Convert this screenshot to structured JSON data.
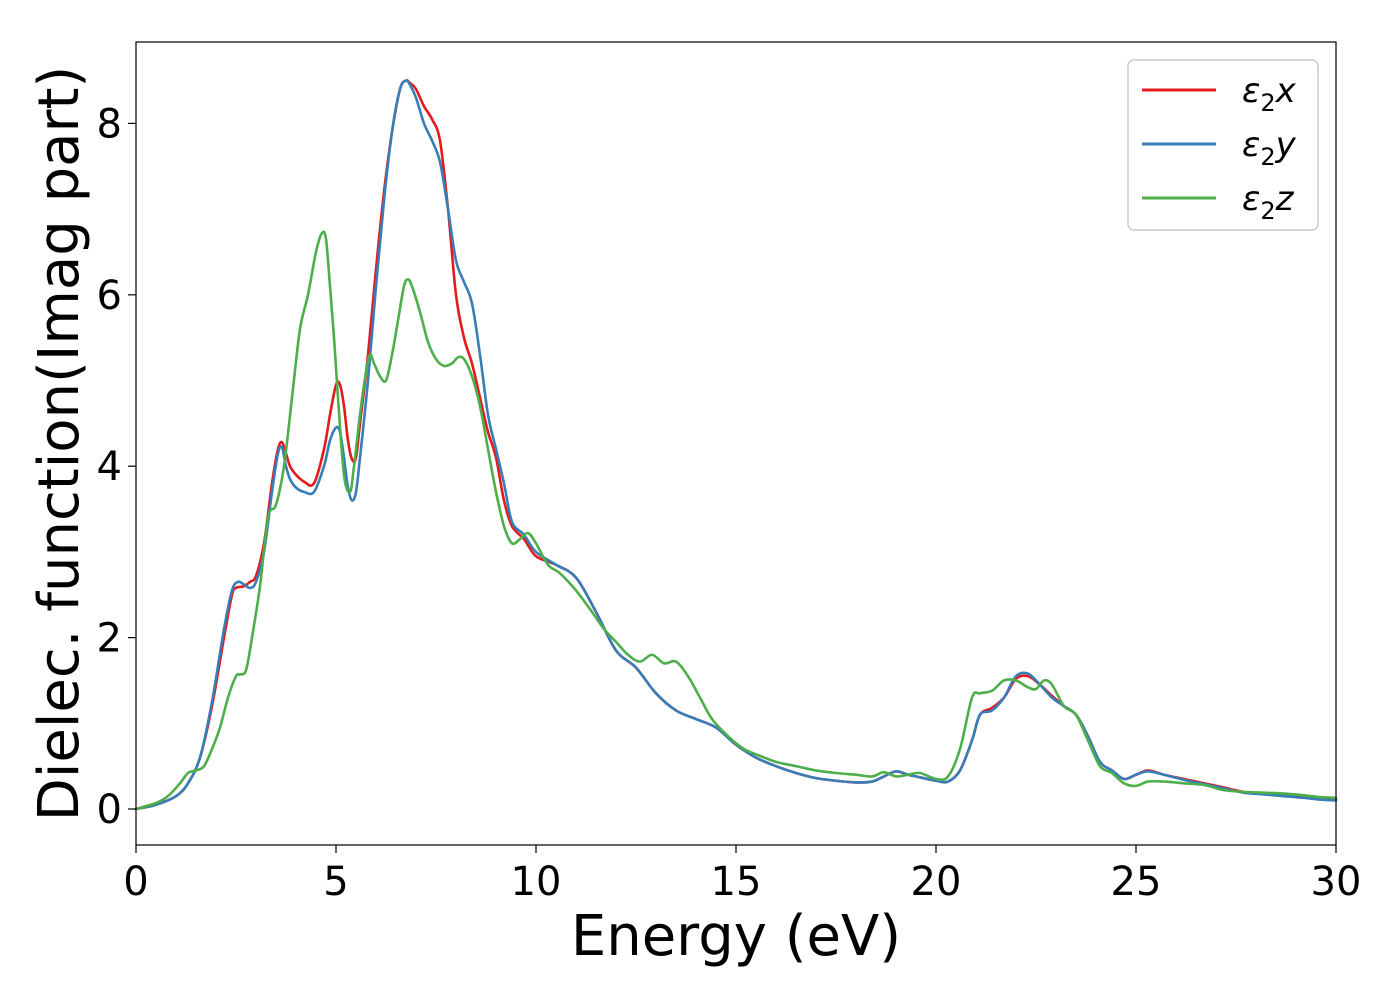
{
  "chart_data": {
    "type": "line",
    "title": "",
    "xlabel": "Energy (eV)",
    "ylabel": "Dielec. function(Imag part)",
    "xlim": [
      0,
      30
    ],
    "ylim": [
      -0.42,
      8.95
    ],
    "xticks": [
      0,
      5,
      10,
      15,
      20,
      25,
      30
    ],
    "yticks": [
      0,
      2,
      4,
      6,
      8
    ],
    "grid": false,
    "legend_position": "top-right",
    "series": [
      {
        "name": "ε₂x",
        "legend_base": "ε",
        "legend_sub": "2",
        "legend_var": "x",
        "color": "#e41a1c",
        "x": [
          0,
          0.5,
          1.0,
          1.3,
          1.6,
          1.9,
          2.2,
          2.4,
          2.5,
          2.7,
          2.85,
          3.0,
          3.2,
          3.4,
          3.55,
          3.65,
          3.75,
          3.85,
          4.0,
          4.2,
          4.45,
          4.7,
          4.85,
          5.0,
          5.1,
          5.2,
          5.3,
          5.4,
          5.5,
          5.6,
          5.8,
          6.0,
          6.2,
          6.4,
          6.6,
          6.75,
          6.85,
          7.0,
          7.2,
          7.4,
          7.6,
          7.8,
          8.0,
          8.2,
          8.4,
          8.6,
          8.8,
          9.0,
          9.2,
          9.4,
          9.7,
          10.0,
          10.5,
          11.0,
          11.5,
          12.0,
          12.5,
          13.0,
          13.5,
          14.0,
          14.5,
          15.0,
          15.5,
          16.0,
          16.5,
          17.0,
          17.5,
          18.0,
          18.4,
          18.7,
          19.0,
          19.3,
          19.6,
          20.0,
          20.3,
          20.6,
          20.9,
          21.1,
          21.4,
          21.7,
          22.0,
          22.3,
          22.6,
          22.9,
          23.2,
          23.5,
          23.8,
          24.1,
          24.4,
          24.7,
          25.0,
          25.3,
          25.7,
          26.2,
          26.7,
          27.2,
          27.7,
          28.2,
          28.7,
          29.2,
          29.6,
          30.0
        ],
        "y": [
          0.0,
          0.05,
          0.15,
          0.3,
          0.6,
          1.2,
          2.0,
          2.5,
          2.58,
          2.6,
          2.65,
          2.72,
          3.1,
          3.8,
          4.2,
          4.28,
          4.15,
          4.0,
          3.9,
          3.82,
          3.8,
          4.2,
          4.6,
          4.95,
          4.95,
          4.7,
          4.3,
          4.08,
          4.1,
          4.5,
          5.3,
          6.3,
          7.2,
          7.9,
          8.4,
          8.5,
          8.47,
          8.4,
          8.2,
          8.05,
          7.8,
          7.0,
          6.0,
          5.5,
          5.2,
          4.8,
          4.4,
          4.1,
          3.6,
          3.3,
          3.15,
          2.95,
          2.85,
          2.7,
          2.3,
          1.85,
          1.65,
          1.35,
          1.15,
          1.05,
          0.95,
          0.75,
          0.6,
          0.5,
          0.42,
          0.36,
          0.33,
          0.31,
          0.32,
          0.38,
          0.44,
          0.4,
          0.37,
          0.33,
          0.32,
          0.45,
          0.8,
          1.1,
          1.18,
          1.3,
          1.52,
          1.55,
          1.45,
          1.32,
          1.2,
          1.1,
          0.85,
          0.55,
          0.45,
          0.35,
          0.4,
          0.45,
          0.4,
          0.35,
          0.3,
          0.25,
          0.2,
          0.18,
          0.16,
          0.14,
          0.12,
          0.11
        ]
      },
      {
        "name": "ε₂y",
        "legend_base": "ε",
        "legend_sub": "2",
        "legend_var": "y",
        "color": "#377eb8",
        "x": [
          0,
          0.5,
          1.0,
          1.3,
          1.6,
          1.9,
          2.2,
          2.4,
          2.55,
          2.7,
          2.85,
          3.0,
          3.2,
          3.4,
          3.55,
          3.65,
          3.75,
          3.85,
          4.0,
          4.2,
          4.45,
          4.7,
          4.85,
          5.0,
          5.1,
          5.2,
          5.3,
          5.4,
          5.5,
          5.6,
          5.8,
          6.0,
          6.2,
          6.4,
          6.6,
          6.75,
          6.85,
          7.0,
          7.2,
          7.4,
          7.6,
          7.8,
          8.0,
          8.2,
          8.4,
          8.6,
          8.8,
          9.0,
          9.2,
          9.4,
          9.7,
          10.0,
          10.5,
          11.0,
          11.5,
          12.0,
          12.5,
          13.0,
          13.5,
          14.0,
          14.5,
          15.0,
          15.5,
          16.0,
          16.5,
          17.0,
          17.5,
          18.0,
          18.4,
          18.7,
          19.0,
          19.3,
          19.6,
          20.0,
          20.3,
          20.6,
          20.9,
          21.1,
          21.4,
          21.7,
          22.0,
          22.3,
          22.6,
          22.9,
          23.2,
          23.5,
          23.8,
          24.1,
          24.4,
          24.7,
          25.0,
          25.3,
          25.7,
          26.2,
          26.7,
          27.2,
          27.7,
          28.2,
          28.7,
          29.2,
          29.6,
          30.0
        ],
        "y": [
          0.0,
          0.05,
          0.15,
          0.3,
          0.6,
          1.25,
          2.1,
          2.55,
          2.65,
          2.62,
          2.58,
          2.65,
          3.0,
          3.7,
          4.15,
          4.22,
          4.0,
          3.85,
          3.75,
          3.7,
          3.7,
          4.0,
          4.3,
          4.45,
          4.4,
          4.1,
          3.75,
          3.6,
          3.7,
          4.1,
          5.0,
          6.1,
          7.1,
          7.9,
          8.4,
          8.5,
          8.45,
          8.3,
          8.0,
          7.8,
          7.55,
          7.0,
          6.4,
          6.15,
          5.9,
          5.3,
          4.6,
          4.2,
          3.8,
          3.35,
          3.2,
          3.0,
          2.85,
          2.7,
          2.3,
          1.85,
          1.65,
          1.35,
          1.15,
          1.05,
          0.95,
          0.75,
          0.6,
          0.5,
          0.42,
          0.36,
          0.33,
          0.31,
          0.32,
          0.38,
          0.44,
          0.4,
          0.37,
          0.33,
          0.32,
          0.45,
          0.8,
          1.1,
          1.15,
          1.3,
          1.55,
          1.58,
          1.45,
          1.3,
          1.2,
          1.1,
          0.85,
          0.55,
          0.45,
          0.35,
          0.4,
          0.44,
          0.4,
          0.34,
          0.29,
          0.24,
          0.19,
          0.17,
          0.15,
          0.13,
          0.11,
          0.1
        ]
      },
      {
        "name": "ε₂z",
        "legend_base": "ε",
        "legend_sub": "2",
        "legend_var": "z",
        "color": "#4daf4a",
        "x": [
          0,
          0.5,
          0.8,
          1.1,
          1.3,
          1.5,
          1.7,
          1.9,
          2.1,
          2.3,
          2.5,
          2.6,
          2.75,
          2.9,
          3.1,
          3.3,
          3.5,
          3.7,
          3.9,
          4.1,
          4.3,
          4.5,
          4.65,
          4.75,
          4.85,
          4.95,
          5.05,
          5.2,
          5.35,
          5.45,
          5.6,
          5.75,
          5.85,
          5.95,
          6.1,
          6.25,
          6.4,
          6.55,
          6.7,
          6.8,
          6.9,
          7.1,
          7.3,
          7.5,
          7.7,
          7.9,
          8.05,
          8.2,
          8.4,
          8.6,
          8.8,
          9.0,
          9.2,
          9.4,
          9.6,
          9.8,
          10.0,
          10.3,
          10.6,
          11.0,
          11.4,
          11.7,
          12.0,
          12.3,
          12.6,
          12.9,
          13.2,
          13.5,
          13.8,
          14.1,
          14.4,
          14.8,
          15.2,
          15.6,
          16.0,
          16.5,
          17.0,
          17.5,
          18.0,
          18.4,
          18.7,
          19.0,
          19.3,
          19.6,
          20.0,
          20.3,
          20.6,
          20.9,
          21.1,
          21.4,
          21.7,
          22.0,
          22.3,
          22.5,
          22.7,
          22.9,
          23.2,
          23.5,
          23.8,
          24.1,
          24.4,
          24.7,
          25.0,
          25.3,
          25.7,
          26.2,
          26.7,
          27.2,
          27.7,
          28.2,
          28.7,
          29.2,
          29.6,
          30.0
        ],
        "y": [
          0.0,
          0.07,
          0.15,
          0.3,
          0.42,
          0.45,
          0.5,
          0.7,
          0.95,
          1.3,
          1.55,
          1.57,
          1.62,
          2.0,
          2.6,
          3.4,
          3.55,
          4.0,
          4.8,
          5.6,
          6.0,
          6.5,
          6.72,
          6.65,
          6.1,
          5.5,
          4.8,
          3.9,
          3.7,
          4.0,
          4.6,
          5.1,
          5.3,
          5.2,
          5.05,
          5.0,
          5.3,
          5.7,
          6.1,
          6.18,
          6.1,
          5.8,
          5.45,
          5.25,
          5.17,
          5.2,
          5.27,
          5.25,
          5.05,
          4.7,
          4.2,
          3.7,
          3.3,
          3.1,
          3.15,
          3.22,
          3.1,
          2.85,
          2.75,
          2.55,
          2.3,
          2.1,
          1.95,
          1.8,
          1.72,
          1.8,
          1.7,
          1.72,
          1.55,
          1.3,
          1.05,
          0.85,
          0.7,
          0.62,
          0.55,
          0.5,
          0.45,
          0.42,
          0.4,
          0.38,
          0.43,
          0.38,
          0.4,
          0.42,
          0.35,
          0.38,
          0.7,
          1.3,
          1.35,
          1.38,
          1.5,
          1.5,
          1.42,
          1.4,
          1.5,
          1.45,
          1.2,
          1.1,
          0.8,
          0.5,
          0.42,
          0.3,
          0.27,
          0.32,
          0.32,
          0.3,
          0.28,
          0.22,
          0.2,
          0.19,
          0.18,
          0.16,
          0.14,
          0.13
        ]
      }
    ]
  }
}
